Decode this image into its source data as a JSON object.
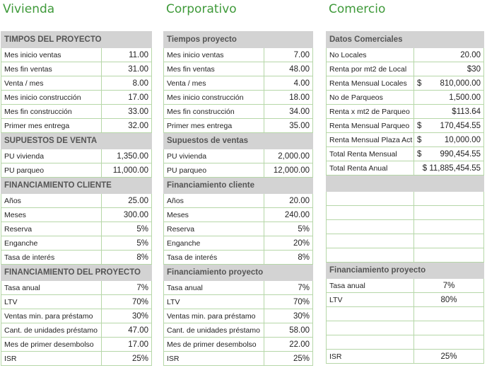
{
  "sections": {
    "vivienda": "Vivienda",
    "corporativo": "Corporativo",
    "comercio": "Comercio"
  },
  "vivienda": [
    {
      "type": "hdr",
      "label": "TIMPOS DEL PROYECTO"
    },
    {
      "label": "Mes inicio ventas",
      "value": "11.00"
    },
    {
      "label": "Mes fin ventas",
      "value": "31.00"
    },
    {
      "label": "Venta / mes",
      "value": "8.00"
    },
    {
      "label": "Mes inicio construcción",
      "value": "17.00"
    },
    {
      "label": "Mes fin construcción",
      "value": "33.00"
    },
    {
      "label": "Primer mes entrega",
      "value": "32.00"
    },
    {
      "type": "hdr",
      "label": "SUPUESTOS DE VENTA"
    },
    {
      "label": "PU vivienda",
      "value": "1,350.00"
    },
    {
      "label": "PU parqueo",
      "value": "11,000.00"
    },
    {
      "type": "hdr",
      "label": "FINANCIAMIENTO CLIENTE"
    },
    {
      "label": "Años",
      "value": "25.00"
    },
    {
      "label": "Meses",
      "value": "300.00"
    },
    {
      "label": "Reserva",
      "value": "5%"
    },
    {
      "label": "Enganche",
      "value": "5%"
    },
    {
      "label": "Tasa de interés",
      "value": "8%"
    },
    {
      "type": "hdr",
      "label": "FINANCIAMIENTO DEL PROYECTO"
    },
    {
      "label": "Tasa anual",
      "value": "7%"
    },
    {
      "label": "LTV",
      "value": "70%"
    },
    {
      "label": "Ventas min. para préstamo",
      "value": "30%"
    },
    {
      "label": "Cant. de unidades préstamo",
      "value": "47.00"
    },
    {
      "label": "Mes de primer desembolso",
      "value": "17.00"
    },
    {
      "label": "ISR",
      "value": "25%"
    }
  ],
  "corporativo": [
    {
      "type": "hdr",
      "label": "Tiempos proyecto"
    },
    {
      "label": "Mes inicio ventas",
      "value": "7.00"
    },
    {
      "label": "Mes fin ventas",
      "value": "48.00"
    },
    {
      "label": "Venta / mes",
      "value": "4.00"
    },
    {
      "label": "Mes inicio construcción",
      "value": "18.00"
    },
    {
      "label": "Mes fin construcción",
      "value": "34.00"
    },
    {
      "label": "Primer mes entrega",
      "value": "35.00"
    },
    {
      "type": "hdr",
      "label": "Supuestos de ventas"
    },
    {
      "label": "PU vivienda",
      "value": "2,000.00"
    },
    {
      "label": "PU parqueo",
      "value": "12,000.00"
    },
    {
      "type": "hdr",
      "label": "Financiamiento cliente"
    },
    {
      "label": "Años",
      "value": "20.00"
    },
    {
      "label": "Meses",
      "value": "240.00"
    },
    {
      "label": "Reserva",
      "value": "5%"
    },
    {
      "label": "Enganche",
      "value": "20%"
    },
    {
      "label": "Tasa de interés",
      "value": "8%"
    },
    {
      "type": "hdr",
      "label": "Financiamiento proyecto"
    },
    {
      "label": "Tasa anual",
      "value": "7%"
    },
    {
      "label": "LTV",
      "value": "70%"
    },
    {
      "label": "Ventas min. para préstamo",
      "value": "30%"
    },
    {
      "label": "Cant. de unidades préstamo",
      "value": "58.00"
    },
    {
      "label": "Mes de primer desembolso",
      "value": "22.00"
    },
    {
      "label": "ISR",
      "value": "25%"
    }
  ],
  "comercio": [
    {
      "type": "hdr",
      "label": "Datos Comerciales"
    },
    {
      "label": "No Locales",
      "value": "20.00"
    },
    {
      "label": "Renta por mt2 de Local",
      "value": "$30"
    },
    {
      "label": "Renta Mensual Locales",
      "cur": "$",
      "value": "810,000.00"
    },
    {
      "label": "No de Parqueos",
      "value": "1,500.00"
    },
    {
      "label": "Renta x mt2 de Parqueo",
      "value": "$113.64"
    },
    {
      "label": "Renta Mensual Parqueo",
      "cur": "$",
      "value": "170,454.55"
    },
    {
      "label": "Renta Mensual Plaza Act",
      "cur": "$",
      "value": "10,000.00"
    },
    {
      "label": "Total Renta Mensual",
      "cur": "$",
      "value": "990,454.55"
    },
    {
      "label": "Total Renta Anual",
      "value": "$ 11,885,454.55"
    },
    {
      "type": "hdr",
      "label": ""
    },
    {
      "label": "",
      "value": ""
    },
    {
      "label": "",
      "value": ""
    },
    {
      "label": "",
      "value": ""
    },
    {
      "label": "",
      "value": ""
    },
    {
      "label": "",
      "value": ""
    },
    {
      "type": "hdr",
      "label": "Financiamiento proyecto"
    },
    {
      "label": "Tasa anual",
      "value": "7%",
      "center": true
    },
    {
      "label": "LTV",
      "value": "80%",
      "center": true
    },
    {
      "label": "",
      "value": ""
    },
    {
      "label": "",
      "value": ""
    },
    {
      "label": "",
      "value": ""
    },
    {
      "label": "ISR",
      "value": "25%",
      "center": true
    }
  ]
}
